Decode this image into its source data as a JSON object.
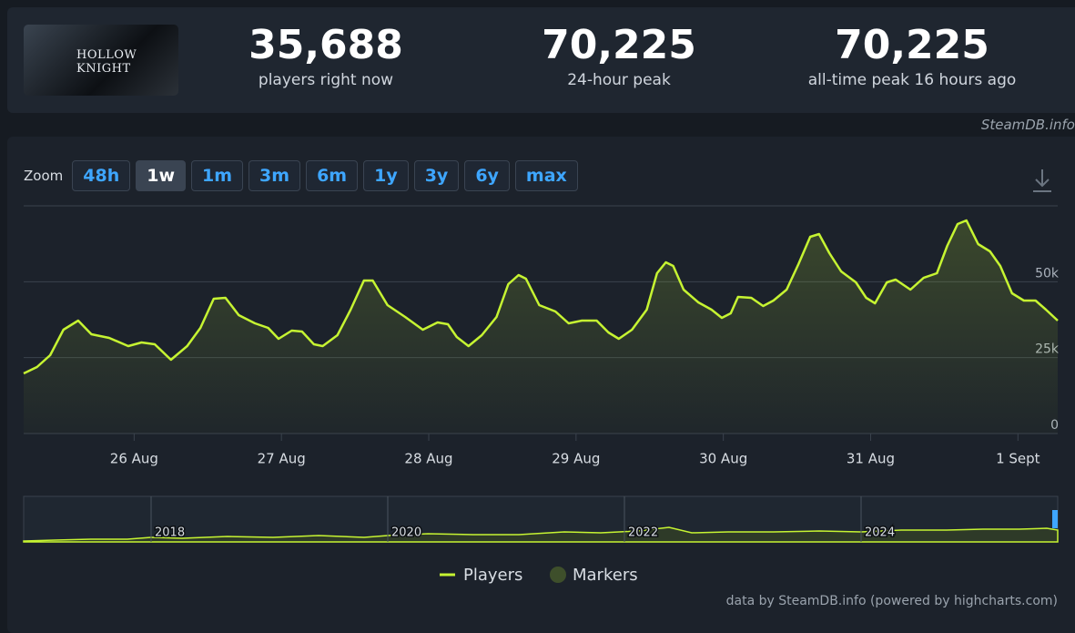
{
  "header": {
    "logo_text": "HOLLOW KNIGHT",
    "stats": [
      {
        "value": "35,688",
        "label": "players right now"
      },
      {
        "value": "70,225",
        "label": "24-hour peak"
      },
      {
        "value": "70,225",
        "label": "all-time peak 16 hours ago"
      }
    ]
  },
  "source_note": "SteamDB.info",
  "zoom": {
    "label": "Zoom",
    "buttons": [
      "48h",
      "1w",
      "1m",
      "3m",
      "6m",
      "1y",
      "3y",
      "6y",
      "max"
    ],
    "active": 1
  },
  "chart_data": {
    "type": "line",
    "x": [
      25.25,
      25.34,
      25.43,
      25.52,
      25.62,
      25.71,
      25.83,
      25.96,
      26.05,
      26.14,
      26.25,
      26.36,
      26.45,
      26.54,
      26.62,
      26.71,
      26.82,
      26.91,
      26.98,
      27.07,
      27.14,
      27.22,
      27.28,
      27.38,
      27.47,
      27.56,
      27.62,
      27.72,
      27.84,
      27.96,
      28.06,
      28.13,
      28.19,
      28.27,
      28.36,
      28.46,
      28.54,
      28.61,
      28.66,
      28.75,
      28.86,
      28.95,
      29.04,
      29.14,
      29.22,
      29.29,
      29.38,
      29.48,
      29.55,
      29.61,
      29.66,
      29.73,
      29.83,
      29.92,
      29.99,
      30.05,
      30.1,
      30.19,
      30.27,
      30.34,
      30.43,
      30.51,
      30.59,
      30.65,
      30.72,
      30.8,
      30.9,
      30.97,
      31.03,
      31.11,
      31.17,
      31.27,
      31.36,
      31.45,
      31.52,
      31.59,
      31.65,
      31.73,
      31.81,
      31.88,
      31.96,
      32.04,
      32.12,
      32.19,
      32.27
    ],
    "series": [
      {
        "name": "Players",
        "color": "#c6f432",
        "values": [
          19800,
          21900,
          25800,
          34200,
          37200,
          32700,
          31500,
          28800,
          30000,
          29400,
          24300,
          28800,
          34800,
          44400,
          44700,
          39000,
          36300,
          34800,
          31200,
          33900,
          33600,
          29400,
          28800,
          32400,
          40800,
          50400,
          50400,
          42300,
          38400,
          34200,
          36600,
          36000,
          31800,
          28800,
          32400,
          38400,
          49200,
          52200,
          51000,
          42300,
          40200,
          36300,
          37200,
          37200,
          33300,
          31200,
          34200,
          40800,
          52800,
          56400,
          55200,
          47400,
          43200,
          40800,
          38100,
          39600,
          45000,
          44700,
          42000,
          43800,
          47400,
          55800,
          64800,
          65700,
          59400,
          53400,
          49800,
          44700,
          42900,
          49800,
          50700,
          47400,
          51300,
          52800,
          61800,
          69000,
          70200,
          62400,
          60000,
          55200,
          46200,
          43800,
          43800,
          40800,
          37200
        ]
      }
    ],
    "markers_label": "Markers",
    "markers_color": "#3e4f2b",
    "xlim": [
      25.25,
      32.27
    ],
    "xticks": [
      {
        "value": 26,
        "label": "26 Aug"
      },
      {
        "value": 27,
        "label": "27 Aug"
      },
      {
        "value": 28,
        "label": "28 Aug"
      },
      {
        "value": 29,
        "label": "29 Aug"
      },
      {
        "value": 30,
        "label": "30 Aug"
      },
      {
        "value": 31,
        "label": "31 Aug"
      },
      {
        "value": 32,
        "label": "1 Sept"
      }
    ],
    "ylim": [
      0,
      75000
    ],
    "yticks": [
      0,
      {
        "value": 25000,
        "label": "25k"
      },
      {
        "value": 50000,
        "label": "50k"
      }
    ],
    "grid": true
  },
  "navigator": {
    "labels": [
      "2018",
      "2020",
      "2022",
      "2024"
    ]
  },
  "credits": "data by SteamDB.info (powered by highcharts.com)"
}
